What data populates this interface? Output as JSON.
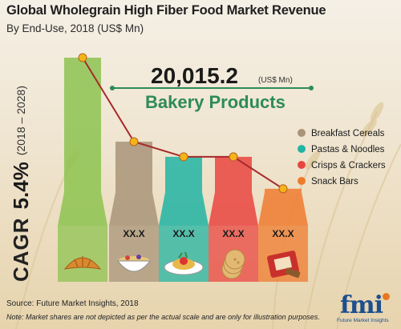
{
  "header": {
    "title": "Global Wholegrain High Fiber Food Market Revenue",
    "subtitle": "By End-Use, 2018 (US$ Mn)"
  },
  "cagr": {
    "label": "CAGR",
    "value": "5.4%",
    "period": "(2018 – 2028)"
  },
  "highlight": {
    "value": "20,015.2",
    "unit": "(US$ Mn)",
    "segment": "Bakery Products"
  },
  "footer": {
    "source": "Source: Future Market Insights, 2018",
    "note": "Note: Market shares are not depicted as per the actual scale and are only for illustration purposes."
  },
  "logo": {
    "text": "fmi",
    "tagline": "Future Market Insights"
  },
  "colors": {
    "bakery": "#8dc350",
    "breakfast": "#a89479",
    "pastas": "#22b4a3",
    "crisps": "#e94540",
    "snack": "#ef7b2f",
    "trend_line": "#a52a2a",
    "marker_fill": "#f6b318",
    "highlight_text": "#2e8b57"
  },
  "chart_data": {
    "type": "bar",
    "categories": [
      "Bakery Products",
      "Breakfast Cereals",
      "Pastas & Noodles",
      "Crisps & Crackers",
      "Snack Bars"
    ],
    "values": [
      20015.2,
      null,
      null,
      null,
      null
    ],
    "value_labels": [
      "",
      "XX.X",
      "XX.X",
      "XX.X",
      "XX.X"
    ],
    "relative_heights": [
      1.0,
      0.5,
      0.41,
      0.41,
      0.22
    ],
    "icons": [
      "croissant-icon",
      "cereal-bowl-icon",
      "pasta-plate-icon",
      "crackers-icon",
      "snack-bar-icon"
    ],
    "legend": [
      {
        "name": "Breakfast Cereals",
        "color": "#a89479"
      },
      {
        "name": "Pastas & Noodles",
        "color": "#22b4a3"
      },
      {
        "name": "Crisps & Crackers",
        "color": "#e94540"
      },
      {
        "name": "Snack Bars",
        "color": "#ef7b2f"
      }
    ],
    "legend_position": "right",
    "trend_line": true,
    "grid": false
  }
}
